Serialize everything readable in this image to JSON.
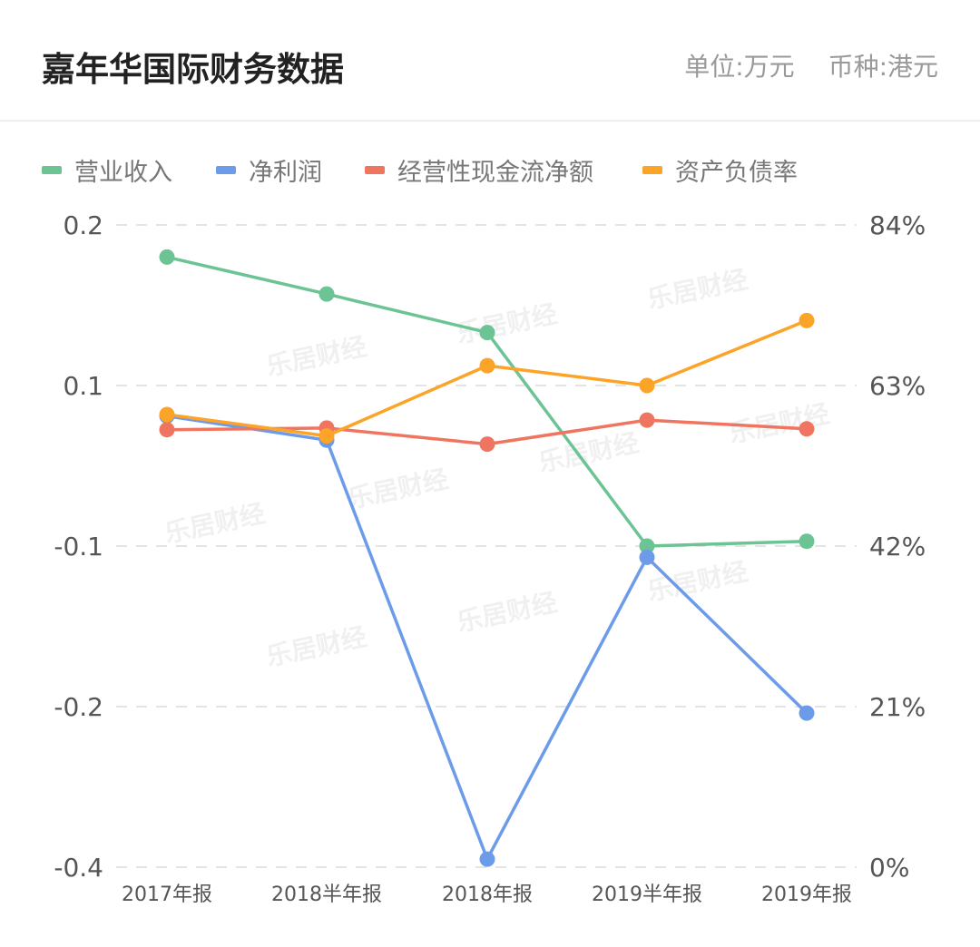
{
  "header": {
    "title": "嘉年华国际财务数据",
    "unit": "单位:万元",
    "currency": "币种:港元"
  },
  "watermark": "乐居财经",
  "chart_data": {
    "type": "line",
    "categories": [
      "2017年报",
      "2018半年报",
      "2018年报",
      "2019半年报",
      "2019年报"
    ],
    "y_left": {
      "ticks": [
        "0.2",
        "0.1",
        "-0.1",
        "-0.2",
        "-0.4"
      ]
    },
    "y_right": {
      "ticks": [
        "84%",
        "63%",
        "42%",
        "21%",
        "0%"
      ],
      "ylim": [
        0,
        84
      ]
    },
    "grid": true,
    "legend_position": "top-left",
    "series": [
      {
        "name": "营业收入",
        "axis": "left",
        "color": "#6cc393",
        "values": [
          0.18,
          0.157,
          0.133,
          -0.1,
          -0.094
        ]
      },
      {
        "name": "净利润",
        "axis": "left",
        "color": "#6c9be9",
        "values": [
          0.062,
          0.032,
          -0.39,
          -0.107,
          -0.208
        ]
      },
      {
        "name": "经营性现金流净额",
        "axis": "left",
        "color": "#f07560",
        "values": [
          0.045,
          0.047,
          0.027,
          0.057,
          0.046
        ]
      },
      {
        "name": "资产负债率",
        "axis": "right",
        "color": "#fba428",
        "values": [
          59.2,
          56.4,
          65.6,
          63.0,
          71.5
        ]
      }
    ]
  }
}
